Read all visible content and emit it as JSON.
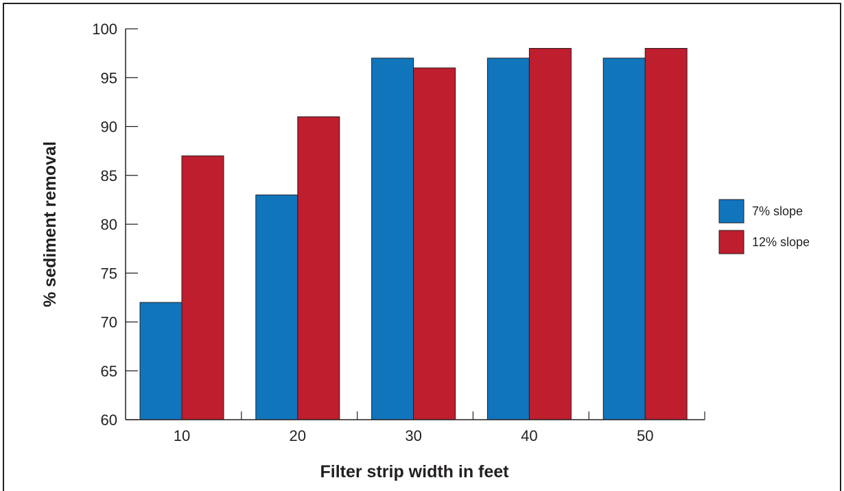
{
  "chart_data": {
    "type": "bar",
    "title": "",
    "xlabel": "Filter strip width in feet",
    "ylabel": "% sediment removal",
    "categories": [
      "10",
      "20",
      "30",
      "40",
      "50"
    ],
    "ylim": [
      60,
      100
    ],
    "yticks": [
      60,
      65,
      70,
      75,
      80,
      85,
      90,
      95,
      100
    ],
    "grid": false,
    "legend_position": "right",
    "series": [
      {
        "name": "7% slope",
        "color": "#1175bc",
        "values": [
          72,
          83,
          97,
          97,
          97
        ]
      },
      {
        "name": "12% slope",
        "color": "#be1e2d",
        "values": [
          87,
          91,
          96,
          98,
          98
        ]
      }
    ]
  }
}
